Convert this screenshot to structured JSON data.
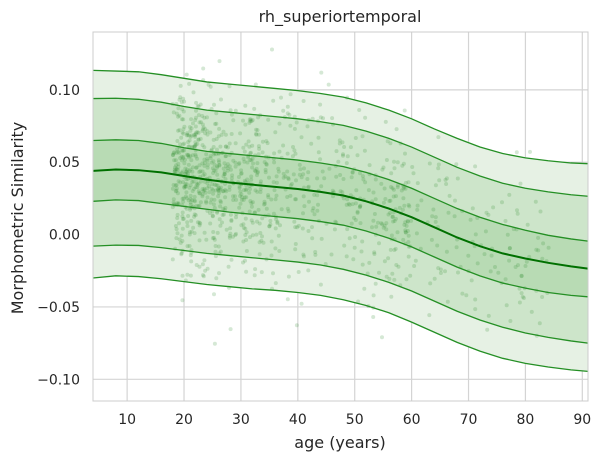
{
  "chart_data": {
    "type": "line",
    "title": "rh_superiortemporal",
    "xlabel": "age (years)",
    "ylabel": "Morphometric Similarity",
    "xlim": [
      4,
      91
    ],
    "ylim": [
      -0.115,
      0.14
    ],
    "xticks": [
      10,
      20,
      30,
      40,
      50,
      60,
      70,
      80,
      90
    ],
    "xtick_labels": [
      "10",
      "20",
      "30",
      "40",
      "50",
      "60",
      "70",
      "80",
      "90"
    ],
    "yticks": [
      -0.1,
      -0.05,
      0.0,
      0.05,
      0.1
    ],
    "ytick_labels": [
      "−0.10",
      "−0.05",
      "0.00",
      "0.05",
      "0.10"
    ],
    "grid": true,
    "colors": {
      "line": "#248f24",
      "median": "#007000",
      "band_outer": "#e6f1e4",
      "band_mid": "#cde5ca",
      "band_inner": "#b8dbb4",
      "points": "#2e8b2e"
    },
    "x": [
      4,
      8,
      12,
      16,
      20,
      24,
      28,
      32,
      36,
      40,
      44,
      48,
      52,
      56,
      60,
      64,
      68,
      72,
      76,
      80,
      84,
      88,
      91
    ],
    "series": [
      {
        "values": [
          0.044,
          0.045,
          0.0445,
          0.043,
          0.0405,
          0.038,
          0.036,
          0.0345,
          0.033,
          0.0315,
          0.0295,
          0.027,
          0.023,
          0.018,
          0.012,
          0.005,
          -0.002,
          -0.008,
          -0.013,
          -0.0165,
          -0.0195,
          -0.022,
          -0.0235
        ]
      },
      {
        "values": [
          0.065,
          0.0655,
          0.065,
          0.063,
          0.06,
          0.0575,
          0.056,
          0.0545,
          0.053,
          0.0515,
          0.0495,
          0.047,
          0.043,
          0.038,
          0.032,
          0.025,
          0.018,
          0.012,
          0.007,
          0.003,
          -0.0005,
          -0.003,
          -0.0045
        ]
      },
      {
        "values": [
          0.023,
          0.024,
          0.0235,
          0.0215,
          0.0195,
          0.0175,
          0.0155,
          0.014,
          0.0125,
          0.011,
          0.009,
          0.0065,
          0.0025,
          -0.0025,
          -0.0085,
          -0.0155,
          -0.0225,
          -0.0285,
          -0.0335,
          -0.037,
          -0.04,
          -0.042,
          -0.043
        ]
      },
      {
        "values": [
          0.094,
          0.0942,
          0.0935,
          0.0915,
          0.0885,
          0.086,
          0.0845,
          0.083,
          0.0815,
          0.08,
          0.078,
          0.0755,
          0.0715,
          0.0665,
          0.0605,
          0.0535,
          0.0465,
          0.0405,
          0.0355,
          0.032,
          0.0295,
          0.0275,
          0.0265
        ]
      },
      {
        "values": [
          -0.008,
          -0.0073,
          -0.0075,
          -0.009,
          -0.011,
          -0.013,
          -0.0145,
          -0.016,
          -0.0175,
          -0.019,
          -0.021,
          -0.024,
          -0.028,
          -0.033,
          -0.039,
          -0.046,
          -0.053,
          -0.059,
          -0.064,
          -0.068,
          -0.071,
          -0.0735,
          -0.075
        ]
      },
      {
        "values": [
          0.1135,
          0.113,
          0.1125,
          0.1105,
          0.108,
          0.1055,
          0.104,
          0.1025,
          0.101,
          0.0995,
          0.0975,
          0.095,
          0.091,
          0.086,
          0.08,
          0.073,
          0.0665,
          0.0605,
          0.056,
          0.053,
          0.051,
          0.0495,
          0.049
        ]
      },
      {
        "values": [
          -0.03,
          -0.0285,
          -0.029,
          -0.0305,
          -0.0325,
          -0.0345,
          -0.036,
          -0.0375,
          -0.0385,
          -0.04,
          -0.042,
          -0.045,
          -0.049,
          -0.054,
          -0.0605,
          -0.0675,
          -0.0745,
          -0.0805,
          -0.0855,
          -0.089,
          -0.0915,
          -0.0935,
          -0.0945
        ]
      }
    ],
    "scatter": {
      "count": 1100,
      "note_style": "semi-transparent green points around the median curve"
    }
  }
}
